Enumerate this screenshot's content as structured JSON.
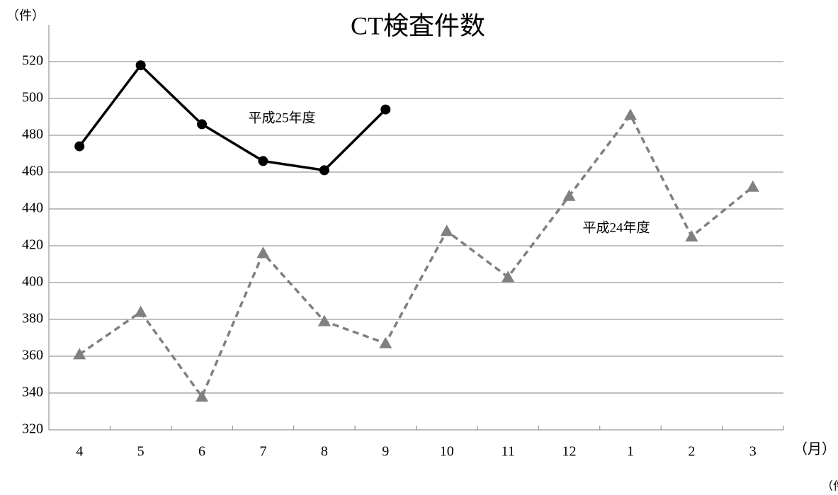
{
  "chart_data": {
    "type": "line",
    "title": "CT検査件数",
    "y_label": "（件）",
    "x_label": "（月）",
    "footer_note": "（件",
    "categories": [
      "4",
      "5",
      "6",
      "7",
      "8",
      "9",
      "10",
      "11",
      "12",
      "1",
      "2",
      "3"
    ],
    "series": [
      {
        "name": "平成25年度",
        "color": "#000000",
        "dashed": false,
        "marker": "circle",
        "values": [
          474,
          518,
          486,
          466,
          461,
          494,
          null,
          null,
          null,
          null,
          null,
          null
        ]
      },
      {
        "name": "平成24年度",
        "color": "#808080",
        "dashed": true,
        "marker": "triangle",
        "values": [
          361,
          384,
          338,
          416,
          379,
          367,
          428,
          403,
          447,
          491,
          425,
          452
        ]
      }
    ],
    "ylim": [
      320,
      540
    ],
    "yticks": [
      320,
      340,
      360,
      380,
      400,
      420,
      440,
      460,
      480,
      500,
      520
    ],
    "grid": true
  }
}
